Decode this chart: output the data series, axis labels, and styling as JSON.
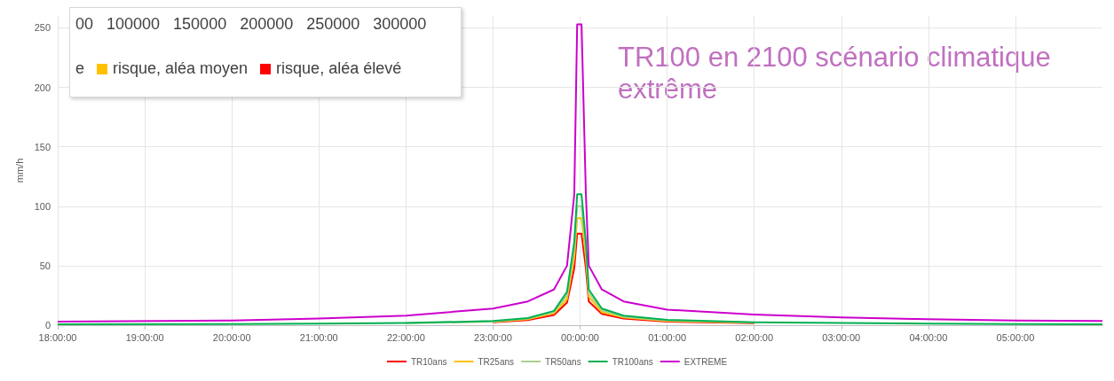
{
  "chart_data": {
    "type": "line",
    "ylabel": "mm/h",
    "x": [
      "2000-01-01T18:00",
      "2000-01-01T20:00",
      "2000-01-01T21:00",
      "2000-01-01T22:00",
      "2000-01-01T23:00",
      "2000-01-01T23:24",
      "2000-01-01T23:42",
      "2000-01-01T23:51",
      "2000-01-01T23:56",
      "2000-01-01T23:58",
      "2000-01-02T00:01",
      "2000-01-02T00:04",
      "2000-01-02T00:06",
      "2000-01-02T00:15",
      "2000-01-02T00:30",
      "2000-01-02T01:00",
      "2000-01-02T02:00",
      "2000-01-02T03:00",
      "2000-01-02T04:00",
      "2000-01-02T05:00",
      "2000-01-02T06:00"
    ],
    "series": [
      {
        "name": "TR10ans",
        "color": "#ff0000",
        "values": [
          null,
          null,
          null,
          null,
          2.4,
          4.3,
          8.5,
          19,
          48,
          77,
          77,
          48,
          20,
          9.5,
          5.5,
          3,
          1.7,
          null,
          null,
          null,
          null
        ]
      },
      {
        "name": "TR25ans",
        "color": "#ffc000",
        "values": [
          null,
          null,
          null,
          null,
          2.8,
          5,
          10,
          22,
          57,
          90,
          90,
          57,
          24,
          11,
          6.5,
          3.6,
          2,
          null,
          null,
          null,
          null
        ]
      },
      {
        "name": "TR50ans",
        "color": "#a9d18e",
        "values": [
          null,
          null,
          null,
          1.6,
          3,
          5.5,
          11,
          25,
          63,
          100,
          100,
          63,
          27,
          12.5,
          7,
          4,
          2.2,
          null,
          null,
          null,
          null
        ]
      },
      {
        "name": "TR100ans",
        "color": "#00b050",
        "values": [
          0.8,
          1,
          1.3,
          1.8,
          3.5,
          6,
          12,
          28,
          70,
          110,
          110,
          70,
          30,
          14,
          8,
          4.5,
          2.5,
          1.8,
          1.3,
          1,
          0.8
        ]
      },
      {
        "name": "EXTREME",
        "color": "#cc00cc",
        "values": [
          3,
          4,
          5.5,
          8,
          14,
          20,
          30,
          50,
          110,
          253,
          253,
          110,
          50,
          30,
          20,
          13,
          9,
          6.5,
          5,
          4,
          3.5
        ]
      }
    ],
    "xlim": [
      "2000-01-01T18:00",
      "2000-01-02T06:00"
    ],
    "xticks": [
      {
        "value": "2000-01-01T18:00",
        "label": "18:00:00"
      },
      {
        "value": "2000-01-01T19:00",
        "label": "19:00:00"
      },
      {
        "value": "2000-01-01T20:00",
        "label": "20:00:00"
      },
      {
        "value": "2000-01-01T21:00",
        "label": "21:00:00"
      },
      {
        "value": "2000-01-01T22:00",
        "label": "22:00:00"
      },
      {
        "value": "2000-01-01T23:00",
        "label": "23:00:00"
      },
      {
        "value": "2000-01-02T00:00",
        "label": "00:00:00"
      },
      {
        "value": "2000-01-02T01:00",
        "label": "01:00:00"
      },
      {
        "value": "2000-01-02T02:00",
        "label": "02:00:00"
      },
      {
        "value": "2000-01-02T03:00",
        "label": "03:00:00"
      },
      {
        "value": "2000-01-02T04:00",
        "label": "04:00:00"
      },
      {
        "value": "2000-01-02T05:00",
        "label": "05:00:00"
      }
    ],
    "ylim": [
      0,
      260
    ],
    "yticks": [
      0,
      50,
      100,
      150,
      200,
      250
    ],
    "grid": true,
    "legend": "bottom",
    "marker": "none",
    "line_style": "solid",
    "annotations": [
      "00   100000   150000   200000   250000   300000",
      "e",
      "risque, aléa moyen",
      "risque, aléa élevé",
      "TR100 en 2100 scénario climatique extrême"
    ]
  }
}
